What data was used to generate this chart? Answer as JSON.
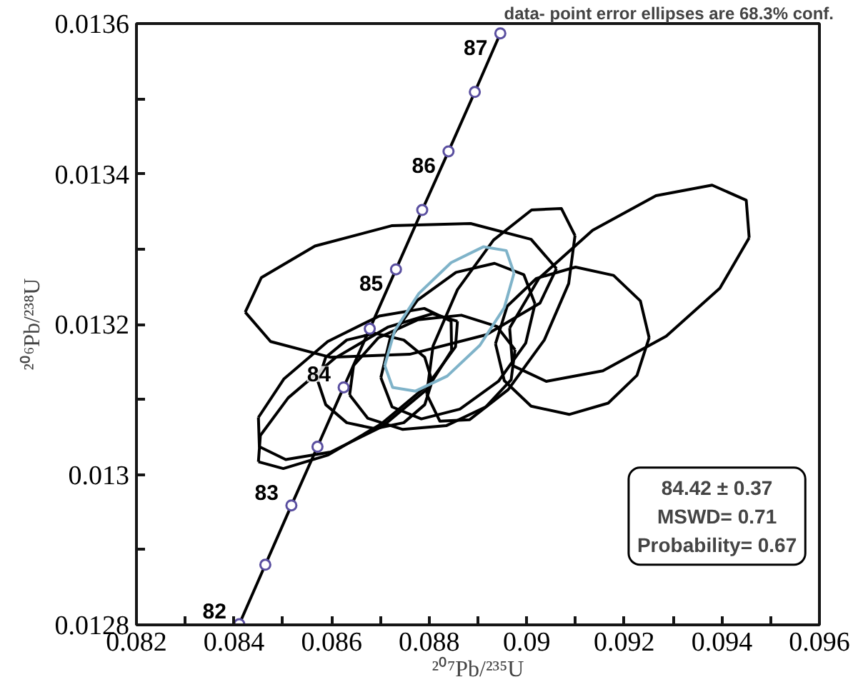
{
  "chart_data": {
    "type": "line",
    "xlabel": "²⁰⁷Pb/²³⁵U",
    "ylabel": "²⁰⁶Pb/²³⁸U",
    "xlim": [
      0.082,
      0.096
    ],
    "ylim": [
      0.0128,
      0.0136
    ],
    "xticks": [
      0.082,
      {
        "value": 0.083,
        "label": null
      },
      0.084,
      {
        "value": 0.085,
        "label": null
      },
      0.086,
      {
        "value": 0.087,
        "label": null
      },
      0.088,
      {
        "value": 0.089,
        "label": null
      },
      0.09,
      {
        "value": 0.091,
        "label": null
      },
      0.092,
      {
        "value": 0.093,
        "label": null
      },
      0.094,
      {
        "value": 0.095,
        "label": null
      },
      0.096
    ],
    "yticks": [
      0.0128,
      {
        "value": 0.0129,
        "label": null
      },
      0.013,
      {
        "value": 0.0131,
        "label": null
      },
      0.0132,
      {
        "value": 0.0133,
        "label": null
      },
      0.0134,
      {
        "value": 0.0135,
        "label": null
      },
      0.0136
    ],
    "grid": false,
    "line_style": "solid",
    "annotations": [
      "data- point error ellipses are 68.3% conf.",
      "84.42 ± 0.37",
      "MSWD= 0.71",
      "Probability= 0.67",
      {
        "text": "82",
        "x": 0.084108,
        "y": 0.012801
      },
      {
        "text": "83",
        "x": 0.085176,
        "y": 0.012959
      },
      {
        "text": "84",
        "x": 0.086247,
        "y": 0.013116
      },
      {
        "text": "85",
        "x": 0.08732,
        "y": 0.013273
      },
      {
        "text": "86",
        "x": 0.088397,
        "y": 0.01343
      },
      {
        "text": "87",
        "x": 0.089459,
        "y": 0.013587
      }
    ],
    "series": [
      {
        "color": "#000000",
        "marker": "circle",
        "x": [
          0.084108,
          0.084642,
          0.085176,
          0.085711,
          0.086247,
          0.086783,
          0.08732,
          0.087858,
          0.088397,
          0.088936,
          0.089459
        ],
        "values": [
          0.012801,
          0.01288,
          0.012959,
          0.013037,
          0.013116,
          0.013194,
          0.013273,
          0.013352,
          0.01343,
          0.013509,
          0.013587
        ]
      },
      {
        "color": "#000000",
        "marker": "none",
        "x": [
          0.08423,
          0.08456,
          0.08566,
          0.08723,
          0.08885,
          0.09009,
          0.09061
        ],
        "values": [
          0.013216,
          0.013262,
          0.013304,
          0.013331,
          0.013334,
          0.013313,
          0.013274
        ]
      },
      {
        "color": "#000000",
        "marker": "none",
        "x": [
          0.08423,
          0.08475,
          0.08598,
          0.0876,
          0.08917,
          0.09027,
          0.09061
        ],
        "values": [
          0.013216,
          0.013177,
          0.013156,
          0.01316,
          0.013186,
          0.013228,
          0.013274
        ]
      },
      {
        "color": "#000000",
        "marker": "none",
        "x": [
          0.08965,
          0.09025,
          0.09135,
          0.09265,
          0.0938,
          0.0945,
          0.09456
        ],
        "values": [
          0.013195,
          0.013261,
          0.013325,
          0.013371,
          0.013385,
          0.013365,
          0.013315
        ]
      },
      {
        "color": "#000000",
        "marker": "none",
        "x": [
          0.08965,
          0.08971,
          0.0904,
          0.09156,
          0.09286,
          0.09396,
          0.09456
        ],
        "values": [
          0.013195,
          0.013145,
          0.013124,
          0.013138,
          0.013184,
          0.013248,
          0.013315
        ]
      },
      {
        "color": "#000000",
        "marker": "none",
        "x": [
          0.08936,
          0.0896,
          0.0902,
          0.091,
          0.09178,
          0.09233,
          0.09251
        ],
        "values": [
          0.013174,
          0.013224,
          0.013261,
          0.013276,
          0.013265,
          0.013231,
          0.013182
        ]
      },
      {
        "color": "#000000",
        "marker": "none",
        "x": [
          0.08936,
          0.08954,
          0.09009,
          0.09087,
          0.09167,
          0.09226,
          0.09251
        ],
        "values": [
          0.013174,
          0.013125,
          0.013091,
          0.01308,
          0.013095,
          0.013132,
          0.013182
        ]
      },
      {
        "color": "#000000",
        "marker": "none",
        "x": [
          0.08795,
          0.08808,
          0.08858,
          0.08932,
          0.0901,
          0.09071,
          0.09099
        ],
        "values": [
          0.013107,
          0.013171,
          0.013246,
          0.013312,
          0.013352,
          0.013354,
          0.013318
        ]
      },
      {
        "color": "#000000",
        "marker": "none",
        "x": [
          0.08795,
          0.08822,
          0.08883,
          0.08962,
          0.09036,
          0.09086,
          0.09099
        ],
        "values": [
          0.013107,
          0.013071,
          0.013073,
          0.013113,
          0.013179,
          0.013254,
          0.013318
        ]
      },
      {
        "color": "#000000",
        "marker": "none",
        "x": [
          0.0845,
          0.08454,
          0.08511,
          0.08607,
          0.08715,
          0.08807,
          0.08858
        ],
        "values": [
          0.013017,
          0.013052,
          0.013102,
          0.013155,
          0.013196,
          0.013214,
          0.013204
        ]
      },
      {
        "color": "#000000",
        "marker": "none",
        "x": [
          0.0845,
          0.08501,
          0.08593,
          0.08701,
          0.08797,
          0.08854,
          0.08858
        ],
        "values": [
          0.013017,
          0.013008,
          0.013026,
          0.013067,
          0.013119,
          0.01317,
          0.013204
        ]
      },
      {
        "color": "#000000",
        "marker": "none",
        "x": [
          0.0845,
          0.08502,
          0.08592,
          0.08698,
          0.0879,
          0.08845,
          0.08846
        ],
        "values": [
          0.013076,
          0.013127,
          0.013177,
          0.013211,
          0.013221,
          0.013204,
          0.013165
        ]
      },
      {
        "color": "#000000",
        "marker": "none",
        "x": [
          0.0845,
          0.08452,
          0.08506,
          0.08598,
          0.08704,
          0.08795,
          0.08846
        ],
        "values": [
          0.013076,
          0.013037,
          0.01302,
          0.01303,
          0.013064,
          0.013113,
          0.013165
        ]
      },
      {
        "color": "#000000",
        "marker": "none",
        "x": [
          0.08637,
          0.08645,
          0.08696,
          0.08777,
          0.08866,
          0.08939,
          0.08976
        ],
        "values": [
          0.013106,
          0.013145,
          0.013182,
          0.013206,
          0.013212,
          0.013197,
          0.013166
        ]
      },
      {
        "color": "#000000",
        "marker": "none",
        "x": [
          0.08637,
          0.08674,
          0.08746,
          0.08835,
          0.08916,
          0.08968,
          0.08976
        ],
        "values": [
          0.013106,
          0.013075,
          0.01306,
          0.013065,
          0.01309,
          0.013126,
          0.013166
        ]
      },
      {
        "color": "#000000",
        "marker": "none",
        "x": [
          0.08572,
          0.08588,
          0.08631,
          0.08689,
          0.08748,
          0.08791,
          0.08806
        ],
        "values": [
          0.013124,
          0.013156,
          0.013179,
          0.013188,
          0.013179,
          0.013156,
          0.013124
        ]
      },
      {
        "color": "#000000",
        "marker": "none",
        "x": [
          0.08572,
          0.08588,
          0.08631,
          0.08689,
          0.08748,
          0.08791,
          0.08806
        ],
        "values": [
          0.013124,
          0.013093,
          0.013069,
          0.013061,
          0.013069,
          0.013093,
          0.013124
        ]
      },
      {
        "color": "#000000",
        "marker": "none",
        "x": [
          0.08701,
          0.0872,
          0.08776,
          0.08855,
          0.08934,
          0.08994,
          0.09017
        ],
        "values": [
          0.013129,
          0.013181,
          0.013232,
          0.013269,
          0.013281,
          0.013266,
          0.013227
        ]
      },
      {
        "color": "#000000",
        "marker": "none",
        "x": [
          0.08701,
          0.08724,
          0.08784,
          0.08863,
          0.08942,
          0.08998,
          0.09017
        ],
        "values": [
          0.013129,
          0.01309,
          0.013074,
          0.013087,
          0.013124,
          0.013175,
          0.013227
        ]
      },
      {
        "color": "#7fb3c9",
        "marker": "none",
        "x": [
          0.08709,
          0.08729,
          0.08779,
          0.08845,
          0.08911,
          0.08958,
          0.08974
        ],
        "values": [
          0.013145,
          0.013191,
          0.013241,
          0.013282,
          0.013303,
          0.013298,
          0.013268
        ]
      },
      {
        "color": "#7fb3c9",
        "marker": "none",
        "x": [
          0.08709,
          0.08725,
          0.08772,
          0.08837,
          0.08904,
          0.08954,
          0.08974
        ],
        "values": [
          0.013145,
          0.013116,
          0.013111,
          0.013131,
          0.013172,
          0.013222,
          0.013268
        ]
      }
    ]
  }
}
